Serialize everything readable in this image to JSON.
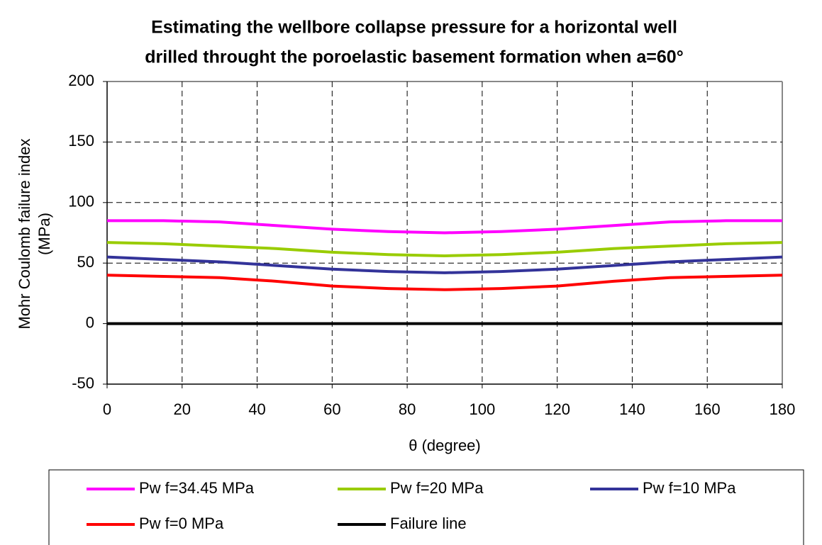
{
  "chart_data": {
    "type": "line",
    "title": [
      "Estimating the wellbore collapse pressure for a horizontal well",
      "drilled throught the poroelastic basement formation when a=60°"
    ],
    "x_label": "θ (degree)",
    "y_label": [
      "Mohr Coulomb failure index",
      "(MPa)"
    ],
    "x": [
      0,
      15,
      30,
      45,
      60,
      75,
      90,
      105,
      120,
      135,
      150,
      165,
      180
    ],
    "series": [
      {
        "name": "Pw f=34.45 MPa",
        "color": "#ff00ff",
        "values": [
          85,
          85,
          84,
          81,
          78,
          76,
          75,
          76,
          78,
          81,
          84,
          85,
          85
        ]
      },
      {
        "name": "Pw f=20 MPa",
        "color": "#99cc00",
        "values": [
          67,
          66,
          64,
          62,
          59,
          57,
          56,
          57,
          59,
          62,
          64,
          66,
          67
        ]
      },
      {
        "name": "Pw f=10 MPa",
        "color": "#333399",
        "values": [
          55,
          53,
          51,
          48,
          45,
          43,
          42,
          43,
          45,
          48,
          51,
          53,
          55
        ]
      },
      {
        "name": "Pw f=0 MPa",
        "color": "#ff0000",
        "values": [
          40,
          39,
          38,
          35,
          31,
          29,
          28,
          29,
          31,
          35,
          38,
          39,
          40
        ]
      },
      {
        "name": "Failure line",
        "color": "#000000",
        "values": [
          0,
          0,
          0,
          0,
          0,
          0,
          0,
          0,
          0,
          0,
          0,
          0,
          0
        ]
      }
    ],
    "xlim": [
      0,
      180
    ],
    "xticks": [
      0,
      20,
      40,
      60,
      80,
      100,
      120,
      140,
      160,
      180
    ],
    "ylim": [
      -50,
      200
    ],
    "yticks": [
      -50,
      0,
      50,
      100,
      150,
      200
    ],
    "grid": true,
    "legend": "bottom"
  }
}
